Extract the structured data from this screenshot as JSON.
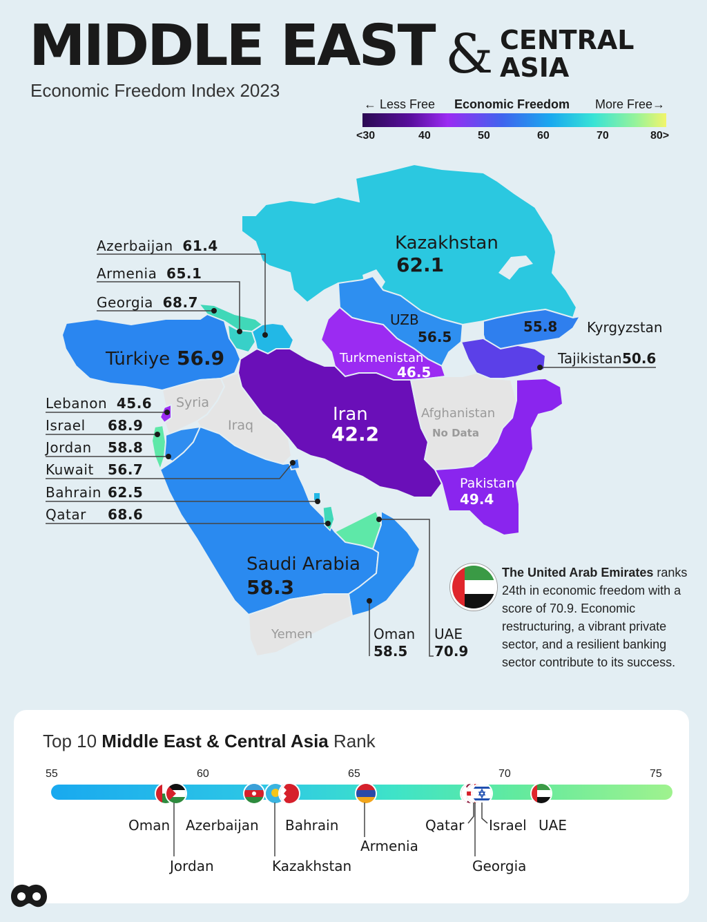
{
  "title": {
    "main": "MIDDLE EAST",
    "amp": "&",
    "line1": "CENTRAL",
    "line2": "ASIA",
    "subtitle": "Economic Freedom Index 2023"
  },
  "legend": {
    "less": "← Less Free",
    "center": "Economic Freedom",
    "more": "More Free→",
    "ticks": [
      "<30",
      "40",
      "50",
      "60",
      "70",
      "80>"
    ]
  },
  "map_labels": {
    "kazakhstan": {
      "name": "Kazakhstan",
      "score": "62.1"
    },
    "uzb": {
      "name": "UZB",
      "score": "56.5"
    },
    "kyrgyzstan": {
      "name": "Kyrgyzstan",
      "score": "55.8"
    },
    "turkmenistan": {
      "name": "Turkmenistan",
      "score": "46.5"
    },
    "tajikistan": {
      "name": "Tajikistan",
      "score": "50.6"
    },
    "turkiye": {
      "name": "Türkiye",
      "score": "56.9"
    },
    "syria": {
      "name": "Syria"
    },
    "iraq": {
      "name": "Iraq"
    },
    "iran": {
      "name": "Iran",
      "score": "42.2"
    },
    "afghanistan": {
      "name": "Afghanistan",
      "note": "No Data"
    },
    "pakistan": {
      "name": "Pakistan",
      "score": "49.4"
    },
    "saudi": {
      "name": "Saudi Arabia",
      "score": "58.3"
    },
    "yemen": {
      "name": "Yemen"
    },
    "oman": {
      "name": "Oman",
      "score": "58.5"
    },
    "uae": {
      "name": "UAE",
      "score": "70.9"
    }
  },
  "side_labels": [
    {
      "name": "Azerbaijan",
      "score": "61.4"
    },
    {
      "name": "Armenia",
      "score": "65.1"
    },
    {
      "name": "Georgia",
      "score": "68.7"
    },
    {
      "name": "Lebanon",
      "score": "45.6"
    },
    {
      "name": "Israel",
      "score": "68.9"
    },
    {
      "name": "Jordan",
      "score": "58.8"
    },
    {
      "name": "Kuwait",
      "score": "56.7"
    },
    {
      "name": "Bahrain",
      "score": "62.5"
    },
    {
      "name": "Qatar",
      "score": "68.6"
    }
  ],
  "callout": {
    "bold": "The United Arab Emirates",
    "text": "ranks 24th in economic freedom with a score of 70.9. Economic restructuring, a vibrant private sector, and a resilient banking sector contribute to its success."
  },
  "rank": {
    "title_pre": "Top 10 ",
    "title_bold": "Middle East & Central Asia",
    "title_post": " Rank",
    "axis": [
      "55",
      "60",
      "65",
      "70",
      "75"
    ],
    "countries": [
      "Oman",
      "Jordan",
      "Azerbaijan",
      "Kazakhstan",
      "Bahrain",
      "Armenia",
      "Qatar",
      "Georgia",
      "Israel",
      "UAE"
    ]
  },
  "colors": {
    "kazakhstan": "#2bc8e0",
    "uzbekistan": "#2e8ff0",
    "kyrgyzstan": "#2f7fee",
    "turkmenistan": "#9b2bf2",
    "tajikistan": "#5b40e8",
    "turkiye": "#2a86f0",
    "iran": "#6a0fb8",
    "pakistan": "#8a25ee",
    "saudi": "#2a8af0",
    "oman": "#2a8df0",
    "uae": "#5ee8a8",
    "no_data": "#e5e5e5",
    "georgia": "#40d8b8",
    "armenia": "#38d0c8",
    "azerbaijan": "#22b8e6"
  }
}
